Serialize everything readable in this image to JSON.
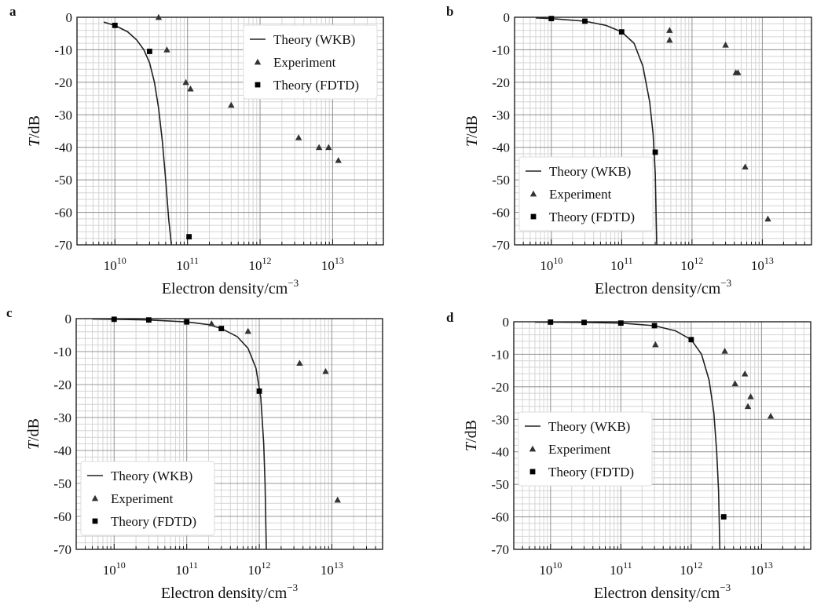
{
  "figure_panels": [
    "a",
    "b",
    "c",
    "d"
  ],
  "legend_labels": {
    "wkb": "Theory (WKB)",
    "experiment": "Experiment",
    "fdtd": "Theory (FDTD)"
  },
  "axis_text": {
    "xlabel": "Electron density/cm",
    "xlabel_exponent": "−3",
    "ylabel_italic": "T",
    "ylabel_rest": "/dB"
  },
  "colors": {
    "curve": "#222222",
    "markers": "#333333",
    "grid_major": "#9a9a9a",
    "grid_minor": "#d4d4d4",
    "axes": "#111111"
  },
  "chart_data": [
    {
      "panel": "a",
      "type": "line",
      "xscale": "log",
      "xlim": [
        3000000000.0,
        50000000000000.0
      ],
      "ylim": [
        -70,
        0
      ],
      "x_tick_labels": [
        "10^10",
        "10^11",
        "10^12",
        "10^13"
      ],
      "y_tick_labels": [
        "0",
        "-10",
        "-20",
        "-30",
        "-40",
        "-50",
        "-60",
        "-70"
      ],
      "legend_location": "upper-right",
      "series": [
        {
          "key": "wkb",
          "style": "line",
          "x": [
            7000000000.0,
            10000000000.0,
            15000000000.0,
            20000000000.0,
            25000000000.0,
            30000000000.0,
            35000000000.0,
            40000000000.0,
            45000000000.0,
            50000000000.0,
            55000000000.0,
            60000000000.0
          ],
          "y": [
            -1.5,
            -2.5,
            -4.5,
            -7,
            -10,
            -14,
            -20,
            -28,
            -38,
            -50,
            -62,
            -70
          ]
        },
        {
          "key": "experiment",
          "style": "triangle",
          "x": [
            40000000000.0,
            52000000000.0,
            95000000000.0,
            110000000000.0,
            400000000000.0,
            3400000000000.0,
            6500000000000.0,
            8800000000000.0,
            12000000000000.0
          ],
          "y": [
            0,
            -10,
            -20,
            -22,
            -27,
            -37,
            -40,
            -40,
            -44
          ]
        },
        {
          "key": "fdtd",
          "style": "square",
          "x": [
            10000000000.0,
            30000000000.0,
            105000000000.0
          ],
          "y": [
            -2.5,
            -10.5,
            -67.5
          ]
        }
      ]
    },
    {
      "panel": "b",
      "type": "line",
      "xscale": "log",
      "xlim": [
        3000000000.0,
        50000000000000.0
      ],
      "ylim": [
        -70,
        0
      ],
      "x_tick_labels": [
        "10^10",
        "10^11",
        "10^12",
        "10^13"
      ],
      "y_tick_labels": [
        "0",
        "-10",
        "-20",
        "-30",
        "-40",
        "-50",
        "-60",
        "-70"
      ],
      "legend_location": "lower-left",
      "series": [
        {
          "key": "wkb",
          "style": "line",
          "x": [
            6000000000.0,
            10000000000.0,
            30000000000.0,
            60000000000.0,
            100000000000.0,
            150000000000.0,
            200000000000.0,
            250000000000.0,
            280000000000.0,
            300000000000.0,
            315000000000.0
          ],
          "y": [
            -0.2,
            -0.4,
            -1.2,
            -2.5,
            -4.5,
            -8,
            -15,
            -26,
            -36,
            -48,
            -70
          ]
        },
        {
          "key": "experiment",
          "style": "triangle",
          "x": [
            480000000000.0,
            480000000000.0,
            3000000000000.0,
            4200000000000.0,
            4500000000000.0,
            5700000000000.0,
            12000000000000.0
          ],
          "y": [
            -4,
            -7,
            -8.5,
            -17,
            -17,
            -46,
            -62
          ]
        },
        {
          "key": "fdtd",
          "style": "square",
          "x": [
            10000000000.0,
            30000000000.0,
            100000000000.0,
            300000000000.0
          ],
          "y": [
            -0.4,
            -1.2,
            -4.5,
            -41.5
          ]
        }
      ]
    },
    {
      "panel": "c",
      "type": "line",
      "xscale": "log",
      "xlim": [
        3000000000.0,
        50000000000000.0
      ],
      "ylim": [
        -70,
        0
      ],
      "x_tick_labels": [
        "10^10",
        "10^11",
        "10^12",
        "10^13"
      ],
      "y_tick_labels": [
        "0",
        "-10",
        "-20",
        "-30",
        "-40",
        "-50",
        "-60",
        "-70"
      ],
      "legend_location": "lower-left",
      "series": [
        {
          "key": "wkb",
          "style": "line",
          "x": [
            5000000000.0,
            10000000000.0,
            30000000000.0,
            100000000000.0,
            200000000000.0,
            300000000000.0,
            500000000000.0,
            700000000000.0,
            900000000000.0,
            1050000000000.0,
            1150000000000.0,
            1200000000000.0,
            1250000000000.0
          ],
          "y": [
            -0.1,
            -0.2,
            -0.4,
            -1.0,
            -1.8,
            -3.0,
            -5.5,
            -9,
            -15,
            -24,
            -38,
            -50,
            -70
          ]
        },
        {
          "key": "experiment",
          "style": "triangle",
          "x": [
            220000000000.0,
            700000000000.0,
            3600000000000.0,
            8200000000000.0,
            12000000000000.0
          ],
          "y": [
            -1.5,
            -3.8,
            -13.5,
            -16,
            -55
          ]
        },
        {
          "key": "fdtd",
          "style": "square",
          "x": [
            10000000000.0,
            30000000000.0,
            100000000000.0,
            300000000000.0,
            1000000000000.0
          ],
          "y": [
            -0.2,
            -0.4,
            -1.0,
            -3.0,
            -22
          ]
        }
      ]
    },
    {
      "panel": "d",
      "type": "line",
      "xscale": "log",
      "xlim": [
        3000000000.0,
        50000000000000.0
      ],
      "ylim": [
        -70,
        0
      ],
      "x_tick_labels": [
        "10^10",
        "10^11",
        "10^12",
        "10^13"
      ],
      "y_tick_labels": [
        "0",
        "-10",
        "-20",
        "-30",
        "-40",
        "-50",
        "-60",
        "-70"
      ],
      "legend_location": "center-left",
      "series": [
        {
          "key": "wkb",
          "style": "line",
          "x": [
            6000000000.0,
            10000000000.0,
            30000000000.0,
            100000000000.0,
            300000000000.0,
            600000000000.0,
            1000000000000.0,
            1400000000000.0,
            1800000000000.0,
            2100000000000.0,
            2300000000000.0,
            2450000000000.0,
            2550000000000.0
          ],
          "y": [
            -0.1,
            -0.1,
            -0.2,
            -0.4,
            -1.2,
            -2.8,
            -5.5,
            -10,
            -18,
            -28,
            -40,
            -52,
            -70
          ]
        },
        {
          "key": "experiment",
          "style": "triangle",
          "x": [
            310000000000.0,
            3000000000000.0,
            4200000000000.0,
            5800000000000.0,
            6400000000000.0,
            7000000000000.0,
            13500000000000.0
          ],
          "y": [
            -7,
            -9,
            -19,
            -16,
            -26,
            -23,
            -29
          ]
        },
        {
          "key": "fdtd",
          "style": "square",
          "x": [
            10000000000.0,
            30000000000.0,
            100000000000.0,
            300000000000.0,
            1000000000000.0,
            2900000000000.0
          ],
          "y": [
            -0.1,
            -0.2,
            -0.4,
            -1.2,
            -5.5,
            -60
          ]
        }
      ]
    }
  ]
}
